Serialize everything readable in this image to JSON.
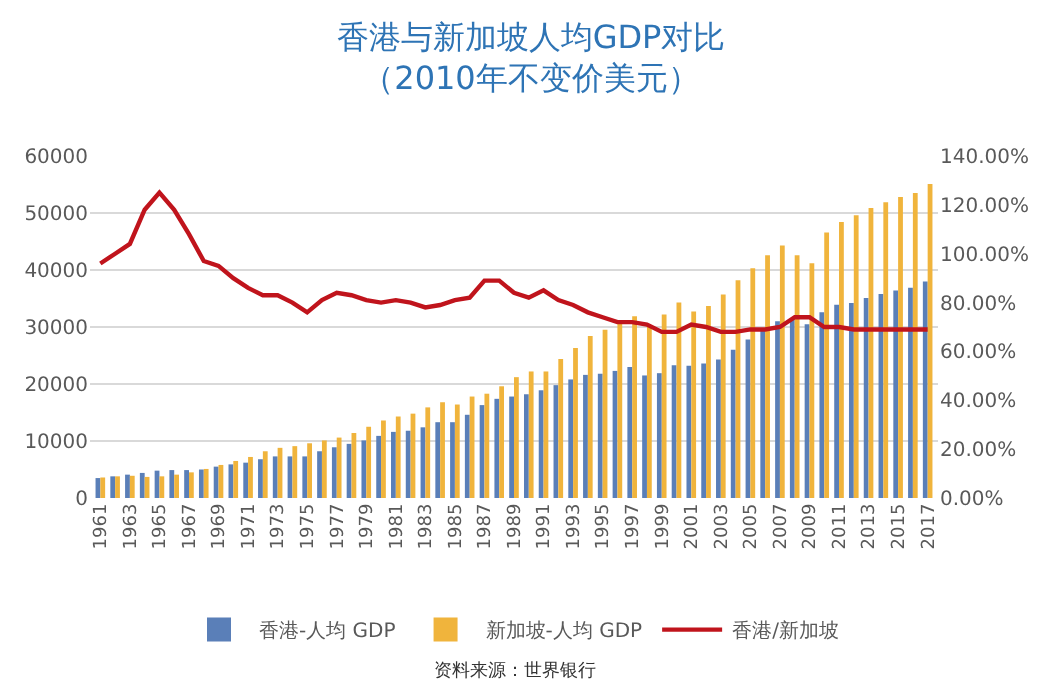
{
  "chart_data": {
    "type": "bar",
    "title": "香港与新加坡人均GDP对比",
    "subtitle": "（2010年不变价美元）",
    "categories": [
      "1961",
      null,
      "1963",
      null,
      "1965",
      null,
      "1967",
      null,
      "1969",
      null,
      "1971",
      null,
      "1973",
      null,
      "1975",
      null,
      "1977",
      null,
      "1979",
      null,
      "1981",
      null,
      "1983",
      null,
      "1985",
      null,
      "1987",
      null,
      "1989",
      null,
      "1991",
      null,
      "1993",
      null,
      "1995",
      null,
      "1997",
      null,
      "1999",
      null,
      "2001",
      null,
      "2003",
      null,
      "2005",
      null,
      "2007",
      null,
      "2009",
      null,
      "2011",
      null,
      "2013",
      null,
      "2015",
      null,
      "2017"
    ],
    "series": [
      {
        "name": "香港-人均 GDP",
        "color": "#5a7fb8",
        "values": [
          3500,
          3800,
          4100,
          4400,
          4800,
          4900,
          4900,
          5000,
          5500,
          5900,
          6200,
          6800,
          7300,
          7300,
          7300,
          8200,
          8900,
          9500,
          10100,
          10900,
          11600,
          11800,
          12400,
          13300,
          13300,
          14600,
          16300,
          17400,
          17800,
          18200,
          18900,
          19800,
          20800,
          21600,
          21800,
          22300,
          23000,
          21500,
          21900,
          23300,
          23200,
          23600,
          24300,
          26000,
          27800,
          29400,
          31000,
          31500,
          30500,
          32600,
          33900,
          34200,
          35100,
          35800,
          36400,
          36900,
          38000
        ]
      },
      {
        "name": "新加坡-人均 GDP",
        "color": "#f0b43c",
        "values": [
          3600,
          3800,
          3900,
          3700,
          3800,
          4100,
          4500,
          5100,
          5800,
          6500,
          7200,
          8200,
          8800,
          9100,
          9600,
          10100,
          10600,
          11400,
          12500,
          13600,
          14300,
          14800,
          15900,
          16800,
          16400,
          17800,
          18300,
          19600,
          21200,
          22200,
          22200,
          24400,
          26300,
          28400,
          29500,
          31000,
          31900,
          30300,
          32200,
          34300,
          32700,
          33700,
          35700,
          38200,
          40300,
          42600,
          44300,
          42600,
          41200,
          46600,
          48400,
          49600,
          50900,
          51900,
          52800,
          53500,
          55100
        ]
      },
      {
        "name": "香港/新加坡",
        "type": "line",
        "axis": "y2",
        "color": "#c0141c",
        "values": [
          96,
          100,
          104,
          118,
          125,
          118,
          108,
          97,
          95,
          90,
          86,
          83,
          83,
          80,
          76,
          81,
          84,
          83,
          81,
          80,
          81,
          80,
          78,
          79,
          81,
          82,
          89,
          89,
          84,
          82,
          85,
          81,
          79,
          76,
          74,
          72,
          72,
          71,
          68,
          68,
          71,
          70,
          68,
          68,
          69,
          69,
          70,
          74,
          74,
          70,
          70,
          69,
          69,
          69,
          69,
          69,
          69
        ]
      }
    ],
    "ylim": [
      0,
      60000
    ],
    "yticks": [
      0,
      10000,
      20000,
      30000,
      40000,
      50000,
      60000
    ],
    "y2lim": [
      0,
      140
    ],
    "y2ticks": [
      {
        "value": 0,
        "label": "0.00%"
      },
      {
        "value": 20,
        "label": "20.00%"
      },
      {
        "value": 40,
        "label": "40.00%"
      },
      {
        "value": 60,
        "label": "60.00%"
      },
      {
        "value": 80,
        "label": "80.00%"
      },
      {
        "value": 100,
        "label": "100.00%"
      },
      {
        "value": 120,
        "label": "120.00%"
      },
      {
        "value": 140,
        "label": "140.00%"
      }
    ],
    "grid": "y",
    "legend": "bottom",
    "marker": "none",
    "line_style": "solid",
    "annotations": [
      "资料来源：世界银行"
    ]
  }
}
